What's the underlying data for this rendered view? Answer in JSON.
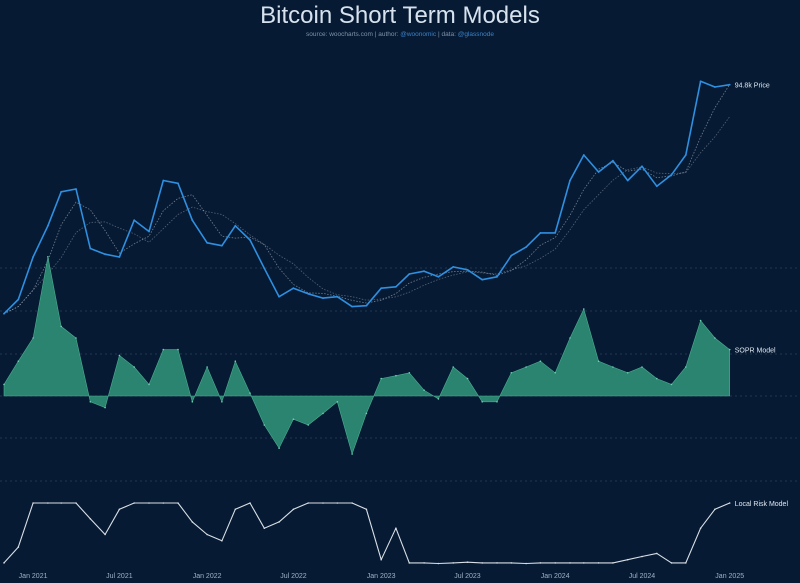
{
  "title": "Bitcoin Short Term Models",
  "subtitle": {
    "source_prefix": "source:",
    "source": "woocharts.com",
    "author_prefix": "| author:",
    "author": "@woonomic",
    "data_prefix": "| data:",
    "data": "@glassnode"
  },
  "colors": {
    "background": "#061a33",
    "price": "#2f8fe0",
    "sopr_fill": "#2e8a73",
    "risk_line": "#d9dfe6",
    "ma_line": "#c7d3de",
    "grid": "#6d819a"
  },
  "chart_data": [
    {
      "type": "line",
      "title": "Price",
      "xlabel": "",
      "ylabel": "",
      "end_label": "94.8k Price",
      "x_ticks": [
        "Jan 2021",
        "Jul 2021",
        "Jan 2022",
        "Jul 2022",
        "Jan 2023",
        "Jul 2023",
        "Jan 2024",
        "Jul 2024",
        "Jan 2025"
      ],
      "grid": true,
      "series": [
        {
          "name": "Price",
          "x": [
            "2020-11-01",
            "2020-12-01",
            "2021-01-01",
            "2021-02-01",
            "2021-03-01",
            "2021-04-01",
            "2021-05-01",
            "2021-06-01",
            "2021-07-01",
            "2021-08-01",
            "2021-09-01",
            "2021-10-01",
            "2021-11-01",
            "2021-12-01",
            "2022-01-01",
            "2022-02-01",
            "2022-03-01",
            "2022-04-01",
            "2022-05-01",
            "2022-06-01",
            "2022-07-01",
            "2022-08-01",
            "2022-09-01",
            "2022-10-01",
            "2022-11-01",
            "2022-12-01",
            "2023-01-01",
            "2023-02-01",
            "2023-03-01",
            "2023-04-01",
            "2023-05-01",
            "2023-06-01",
            "2023-07-01",
            "2023-08-01",
            "2023-09-01",
            "2023-10-01",
            "2023-11-01",
            "2023-12-01",
            "2024-01-01",
            "2024-02-01",
            "2024-03-01",
            "2024-04-01",
            "2024-05-01",
            "2024-06-01",
            "2024-07-01",
            "2024-08-01",
            "2024-09-01",
            "2024-10-01",
            "2024-11-01",
            "2024-12-01",
            "2025-01-01"
          ],
          "values": [
            14000,
            19000,
            34000,
            45000,
            57000,
            58000,
            37000,
            35000,
            34000,
            47000,
            43000,
            61000,
            60000,
            47000,
            39000,
            38000,
            45000,
            40000,
            30000,
            20000,
            23000,
            21000,
            19500,
            20000,
            16500,
            16800,
            23000,
            23500,
            28000,
            29000,
            27000,
            30500,
            29500,
            26000,
            27000,
            34500,
            37500,
            42500,
            42500,
            61000,
            70000,
            64000,
            68000,
            61000,
            66000,
            59000,
            63000,
            70000,
            96000,
            94000,
            94800
          ]
        }
      ]
    },
    {
      "type": "area",
      "title": "SOPR Model",
      "xlabel": "",
      "ylabel": "",
      "end_label": "SOPR Model",
      "x_ticks": [
        "Jan 2021",
        "Jul 2021",
        "Jan 2022",
        "Jul 2022",
        "Jan 2023",
        "Jul 2023",
        "Jan 2024",
        "Jul 2024",
        "Jan 2025"
      ],
      "series": [
        {
          "name": "SOPR Model",
          "x": [
            "2020-11-01",
            "2020-12-01",
            "2021-01-01",
            "2021-02-01",
            "2021-03-01",
            "2021-04-01",
            "2021-05-01",
            "2021-06-01",
            "2021-07-01",
            "2021-08-01",
            "2021-09-01",
            "2021-10-01",
            "2021-11-01",
            "2021-12-01",
            "2022-01-01",
            "2022-02-01",
            "2022-03-01",
            "2022-04-01",
            "2022-05-01",
            "2022-06-01",
            "2022-07-01",
            "2022-08-01",
            "2022-09-01",
            "2022-10-01",
            "2022-11-01",
            "2022-12-01",
            "2023-01-01",
            "2023-02-01",
            "2023-03-01",
            "2023-04-01",
            "2023-05-01",
            "2023-06-01",
            "2023-07-01",
            "2023-08-01",
            "2023-09-01",
            "2023-10-01",
            "2023-11-01",
            "2023-12-01",
            "2024-01-01",
            "2024-02-01",
            "2024-03-01",
            "2024-04-01",
            "2024-05-01",
            "2024-06-01",
            "2024-07-01",
            "2024-08-01",
            "2024-09-01",
            "2024-10-01",
            "2024-11-01",
            "2024-12-01",
            "2025-01-01"
          ],
          "values": [
            0.2,
            0.6,
            1.0,
            2.4,
            1.2,
            1.0,
            -0.1,
            -0.2,
            0.7,
            0.5,
            0.2,
            0.8,
            0.8,
            -0.1,
            0.5,
            -0.1,
            0.6,
            0.05,
            -0.5,
            -0.9,
            -0.4,
            -0.5,
            -0.3,
            -0.1,
            -1.0,
            -0.3,
            0.3,
            0.35,
            0.4,
            0.1,
            -0.05,
            0.5,
            0.3,
            -0.1,
            -0.1,
            0.4,
            0.5,
            0.6,
            0.4,
            1.0,
            1.5,
            0.6,
            0.5,
            0.4,
            0.5,
            0.3,
            0.2,
            0.5,
            1.3,
            1.0,
            0.8
          ]
        }
      ]
    },
    {
      "type": "line",
      "title": "Local Risk Model",
      "xlabel": "",
      "ylabel": "",
      "end_label": "Local Risk Model",
      "x_ticks": [
        "Jan 2021",
        "Jul 2021",
        "Jan 2022",
        "Jul 2022",
        "Jan 2023",
        "Jul 2023",
        "Jan 2024",
        "Jul 2024",
        "Jan 2025"
      ],
      "series": [
        {
          "name": "Local Risk Model",
          "x": [
            "2020-11-01",
            "2020-12-01",
            "2021-01-01",
            "2021-02-01",
            "2021-03-01",
            "2021-04-01",
            "2021-05-01",
            "2021-06-01",
            "2021-07-01",
            "2021-08-01",
            "2021-09-01",
            "2021-10-01",
            "2021-11-01",
            "2021-12-01",
            "2022-01-01",
            "2022-02-01",
            "2022-03-01",
            "2022-04-01",
            "2022-05-01",
            "2022-06-01",
            "2022-07-01",
            "2022-08-01",
            "2022-09-01",
            "2022-10-01",
            "2022-11-01",
            "2022-12-01",
            "2023-01-01",
            "2023-02-01",
            "2023-03-01",
            "2023-04-01",
            "2023-05-01",
            "2023-06-01",
            "2023-07-01",
            "2023-08-01",
            "2023-09-01",
            "2023-10-01",
            "2023-11-01",
            "2023-12-01",
            "2024-01-01",
            "2024-02-01",
            "2024-03-01",
            "2024-04-01",
            "2024-05-01",
            "2024-06-01",
            "2024-07-01",
            "2024-08-01",
            "2024-09-01",
            "2024-10-01",
            "2024-11-01",
            "2024-12-01",
            "2025-01-01"
          ],
          "values": [
            0.05,
            0.3,
            1.0,
            1.0,
            1.0,
            1.0,
            0.75,
            0.5,
            0.9,
            1.0,
            1.0,
            1.0,
            1.0,
            0.7,
            0.5,
            0.4,
            0.9,
            1.0,
            0.6,
            0.7,
            0.9,
            1.0,
            1.0,
            1.0,
            1.0,
            0.9,
            0.1,
            0.6,
            0.05,
            0.05,
            0.04,
            0.05,
            0.06,
            0.05,
            0.05,
            0.05,
            0.04,
            0.05,
            0.05,
            0.05,
            0.05,
            0.05,
            0.05,
            0.1,
            0.15,
            0.2,
            0.05,
            0.05,
            0.6,
            0.9,
            1.0
          ]
        }
      ]
    }
  ]
}
